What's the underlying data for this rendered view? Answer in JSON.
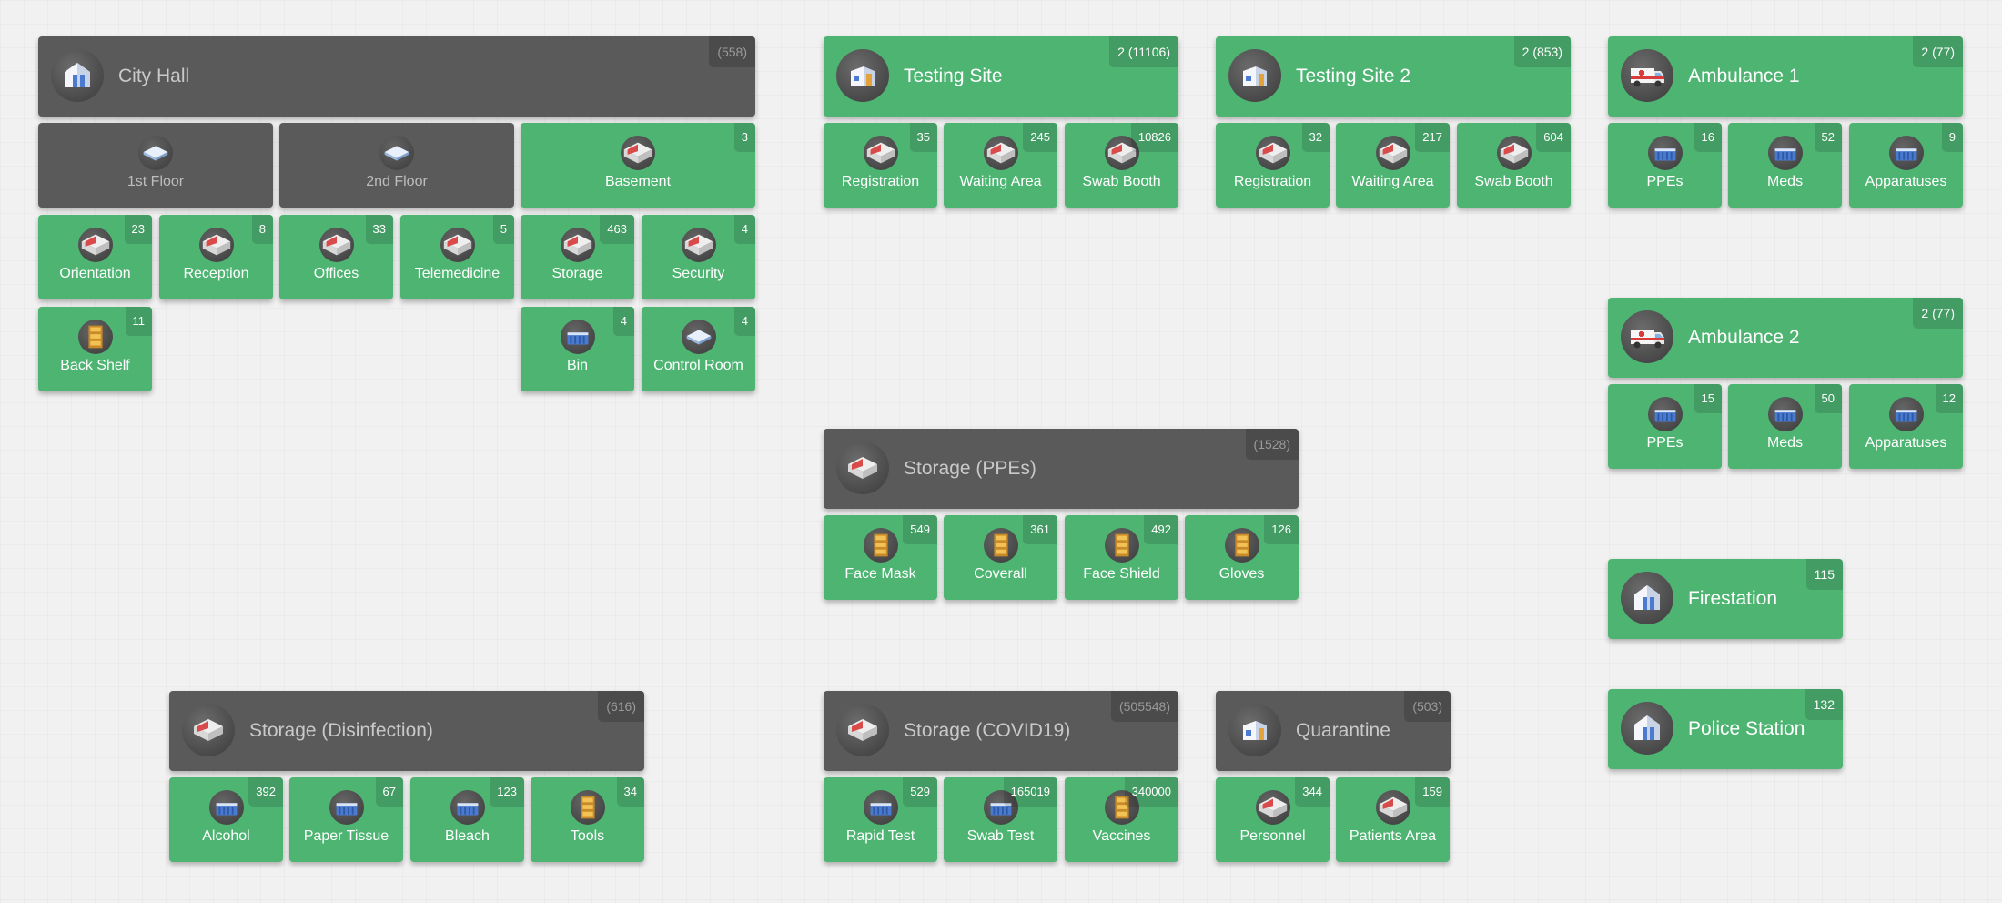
{
  "icons": {
    "building": "building-icon",
    "room": "room-icon",
    "floor": "floor-layer-icon",
    "container": "storage-bin-icon",
    "shelf": "shelf-icon",
    "ambulance": "ambulance-icon"
  },
  "colors": {
    "active": "#4db472",
    "inactive": "#5a5a5a"
  },
  "city_hall": {
    "header": {
      "title": "City Hall",
      "badge": "(558)"
    },
    "floor1": {
      "title": "1st Floor"
    },
    "floor2": {
      "title": "2nd Floor"
    },
    "basement": {
      "title": "Basement",
      "badge": "3"
    },
    "orientation": {
      "title": "Orientation",
      "badge": "23"
    },
    "reception": {
      "title": "Reception",
      "badge": "8"
    },
    "offices": {
      "title": "Offices",
      "badge": "33"
    },
    "telemedicine": {
      "title": "Telemedicine",
      "badge": "5"
    },
    "storage": {
      "title": "Storage",
      "badge": "463"
    },
    "security": {
      "title": "Security",
      "badge": "4"
    },
    "back_shelf": {
      "title": "Back Shelf",
      "badge": "11"
    },
    "bin": {
      "title": "Bin",
      "badge": "4"
    },
    "control_room": {
      "title": "Control Room",
      "badge": "4"
    }
  },
  "testing_site": {
    "header": {
      "title": "Testing Site",
      "badge": "2 (11106)"
    },
    "registration": {
      "title": "Registration",
      "badge": "35"
    },
    "waiting_area": {
      "title": "Waiting Area",
      "badge": "245"
    },
    "swab_booth": {
      "title": "Swab Booth",
      "badge": "10826"
    }
  },
  "testing_site_2": {
    "header": {
      "title": "Testing Site 2",
      "badge": "2 (853)"
    },
    "registration": {
      "title": "Registration",
      "badge": "32"
    },
    "waiting_area": {
      "title": "Waiting Area",
      "badge": "217"
    },
    "swab_booth": {
      "title": "Swab Booth",
      "badge": "604"
    }
  },
  "ambulance_1": {
    "header": {
      "title": "Ambulance 1",
      "badge": "2 (77)"
    },
    "ppes": {
      "title": "PPEs",
      "badge": "16"
    },
    "meds": {
      "title": "Meds",
      "badge": "52"
    },
    "apparatuses": {
      "title": "Apparatuses",
      "badge": "9"
    }
  },
  "ambulance_2": {
    "header": {
      "title": "Ambulance 2",
      "badge": "2 (77)"
    },
    "ppes": {
      "title": "PPEs",
      "badge": "15"
    },
    "meds": {
      "title": "Meds",
      "badge": "50"
    },
    "apparatuses": {
      "title": "Apparatuses",
      "badge": "12"
    }
  },
  "storage_ppes": {
    "header": {
      "title": "Storage (PPEs)",
      "badge": "(1528)"
    },
    "face_mask": {
      "title": "Face Mask",
      "badge": "549"
    },
    "coverall": {
      "title": "Coverall",
      "badge": "361"
    },
    "face_shield": {
      "title": "Face Shield",
      "badge": "492"
    },
    "gloves": {
      "title": "Gloves",
      "badge": "126"
    }
  },
  "firestation": {
    "header": {
      "title": "Firestation",
      "badge": "115"
    }
  },
  "police_station": {
    "header": {
      "title": "Police Station",
      "badge": "132"
    }
  },
  "storage_disinfection": {
    "header": {
      "title": "Storage (Disinfection)",
      "badge": "(616)"
    },
    "alcohol": {
      "title": "Alcohol",
      "badge": "392"
    },
    "paper_tissue": {
      "title": "Paper Tissue",
      "badge": "67"
    },
    "bleach": {
      "title": "Bleach",
      "badge": "123"
    },
    "tools": {
      "title": "Tools",
      "badge": "34"
    }
  },
  "storage_covid19": {
    "header": {
      "title": "Storage (COVID19)",
      "badge": "(505548)"
    },
    "rapid_test": {
      "title": "Rapid Test",
      "badge": "529"
    },
    "swab_test": {
      "title": "Swab Test",
      "badge": "165019"
    },
    "vaccines": {
      "title": "Vaccines",
      "badge": "340000"
    }
  },
  "quarantine": {
    "header": {
      "title": "Quarantine",
      "badge": "(503)"
    },
    "personnel": {
      "title": "Personnel",
      "badge": "344"
    },
    "patients_area": {
      "title": "Patients Area",
      "badge": "159"
    }
  }
}
